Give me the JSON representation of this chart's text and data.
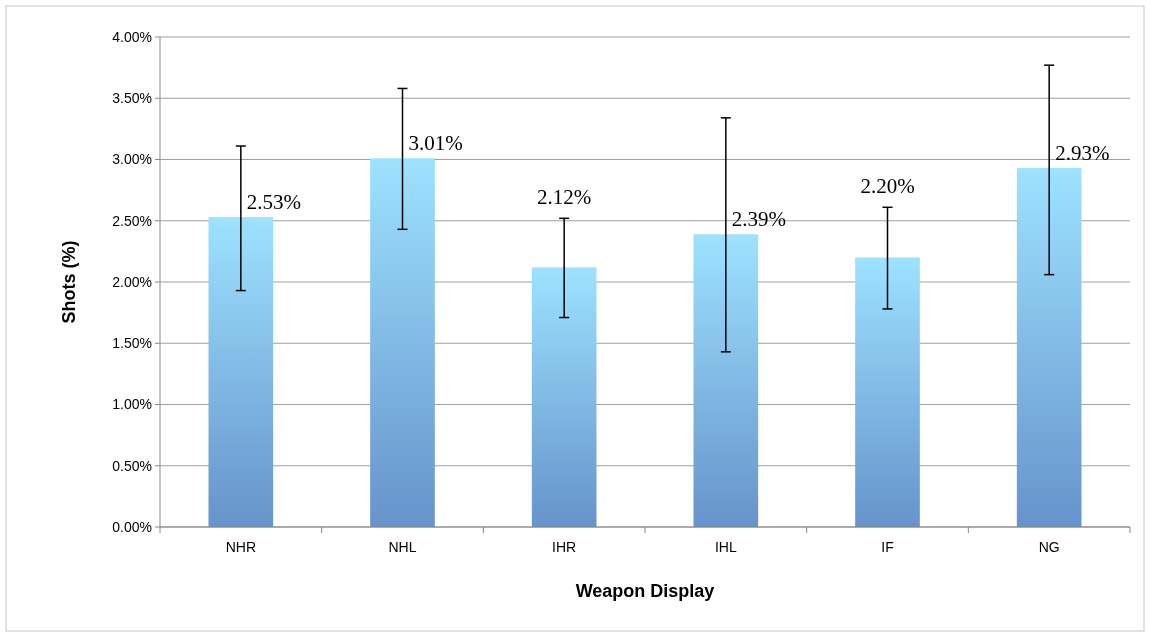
{
  "chart_data": {
    "type": "bar",
    "xlabel": "Weapon Display",
    "ylabel": "Shots (%)",
    "categories": [
      "NHR",
      "NHL",
      "IHR",
      "IHL",
      "IF",
      "NG"
    ],
    "values": [
      2.53,
      3.01,
      2.12,
      2.39,
      2.2,
      2.93
    ],
    "value_labels": [
      "2.53%",
      "3.01%",
      "2.12%",
      "2.39%",
      "2.20%",
      "2.93%"
    ],
    "errors": [
      [
        1.93,
        3.11
      ],
      [
        2.43,
        3.58
      ],
      [
        1.71,
        2.52
      ],
      [
        1.43,
        3.34
      ],
      [
        1.78,
        2.61
      ],
      [
        2.06,
        3.77
      ]
    ],
    "color": "#76aaea",
    "ylim": [
      0,
      4
    ],
    "yticks": [
      {
        "value": 0,
        "label": "0.00%"
      },
      {
        "value": 0.5,
        "label": "0.50%"
      },
      {
        "value": 1,
        "label": "1.00%"
      },
      {
        "value": 1.5,
        "label": "1.50%"
      },
      {
        "value": 2,
        "label": "2.00%"
      },
      {
        "value": 2.5,
        "label": "2.50%"
      },
      {
        "value": 3,
        "label": "3.00%"
      },
      {
        "value": 3.5,
        "label": "3.50%"
      },
      {
        "value": 4,
        "label": "4.00%"
      }
    ],
    "grid": "y"
  }
}
